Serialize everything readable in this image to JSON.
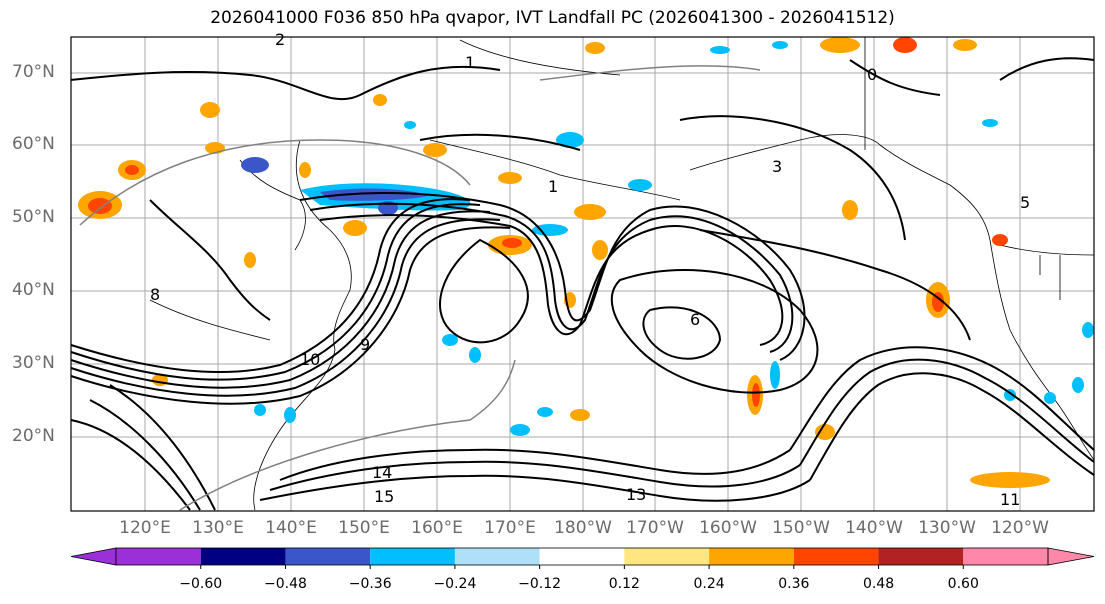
{
  "title": "2026041000 F036 850 hPa qvapor, IVT Landfall PC (2026041300 - 2026041512)",
  "lat_labels": [
    "70°N",
    "60°N",
    "50°N",
    "40°N",
    "30°N",
    "20°N"
  ],
  "lon_labels": [
    "120°E",
    "130°E",
    "140°E",
    "150°E",
    "160°E",
    "170°E",
    "180°W",
    "170°W",
    "160°W",
    "150°W",
    "140°W",
    "130°W",
    "120°W"
  ],
  "colorbar": {
    "ticks": [
      "−0.60",
      "−0.48",
      "−0.36",
      "−0.24",
      "−0.12",
      "0.12",
      "0.24",
      "0.36",
      "0.48",
      "0.60"
    ],
    "colors": [
      "#9b30d9",
      "#000080",
      "#3a56c8",
      "#00bfff",
      "#aee1f8",
      "#ffffff",
      "#ffe680",
      "#ffa500",
      "#ff4500",
      "#b22222",
      "#ff88aa",
      "#ff88aa"
    ]
  },
  "contour_labels": [
    "1",
    "1",
    "2",
    "3",
    "5",
    "6",
    "8",
    "9",
    "10",
    "11",
    "13",
    "14",
    "15",
    "0"
  ]
}
